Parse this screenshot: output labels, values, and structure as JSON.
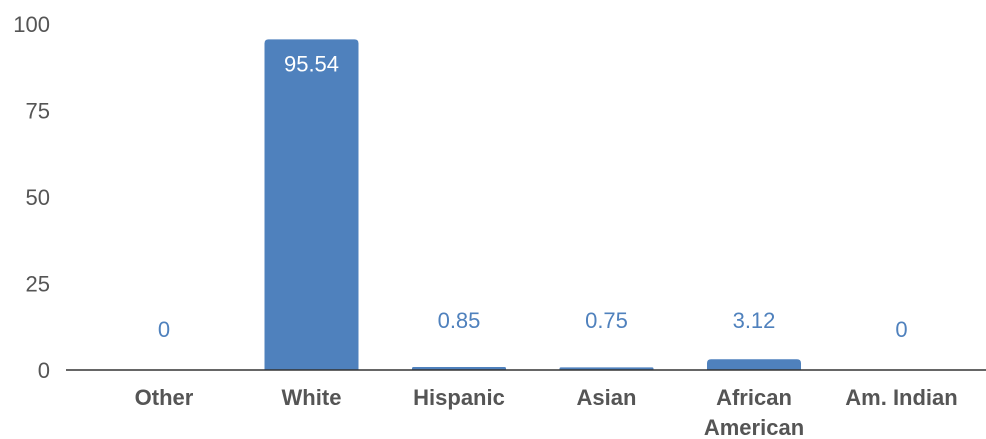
{
  "chart_data": {
    "type": "bar",
    "categories": [
      [
        "Other"
      ],
      [
        "White"
      ],
      [
        "Hispanic"
      ],
      [
        "Asian"
      ],
      [
        "African",
        "American"
      ],
      [
        "Am. Indian"
      ]
    ],
    "values": [
      0,
      95.54,
      0.85,
      0.75,
      3.12,
      0
    ],
    "data_labels": [
      "0",
      "95.54",
      "0.85",
      "0.75",
      "3.12",
      "0"
    ],
    "y_ticks": [
      0,
      25,
      50,
      75,
      100
    ],
    "ylim": [
      0,
      100
    ],
    "grid": false,
    "legend": "none"
  },
  "colors": {
    "bar": "#4f81bd",
    "label_inside": "#ffffff",
    "label_outside": "#4f81bd",
    "axis": "#333333",
    "text": "#555555"
  }
}
